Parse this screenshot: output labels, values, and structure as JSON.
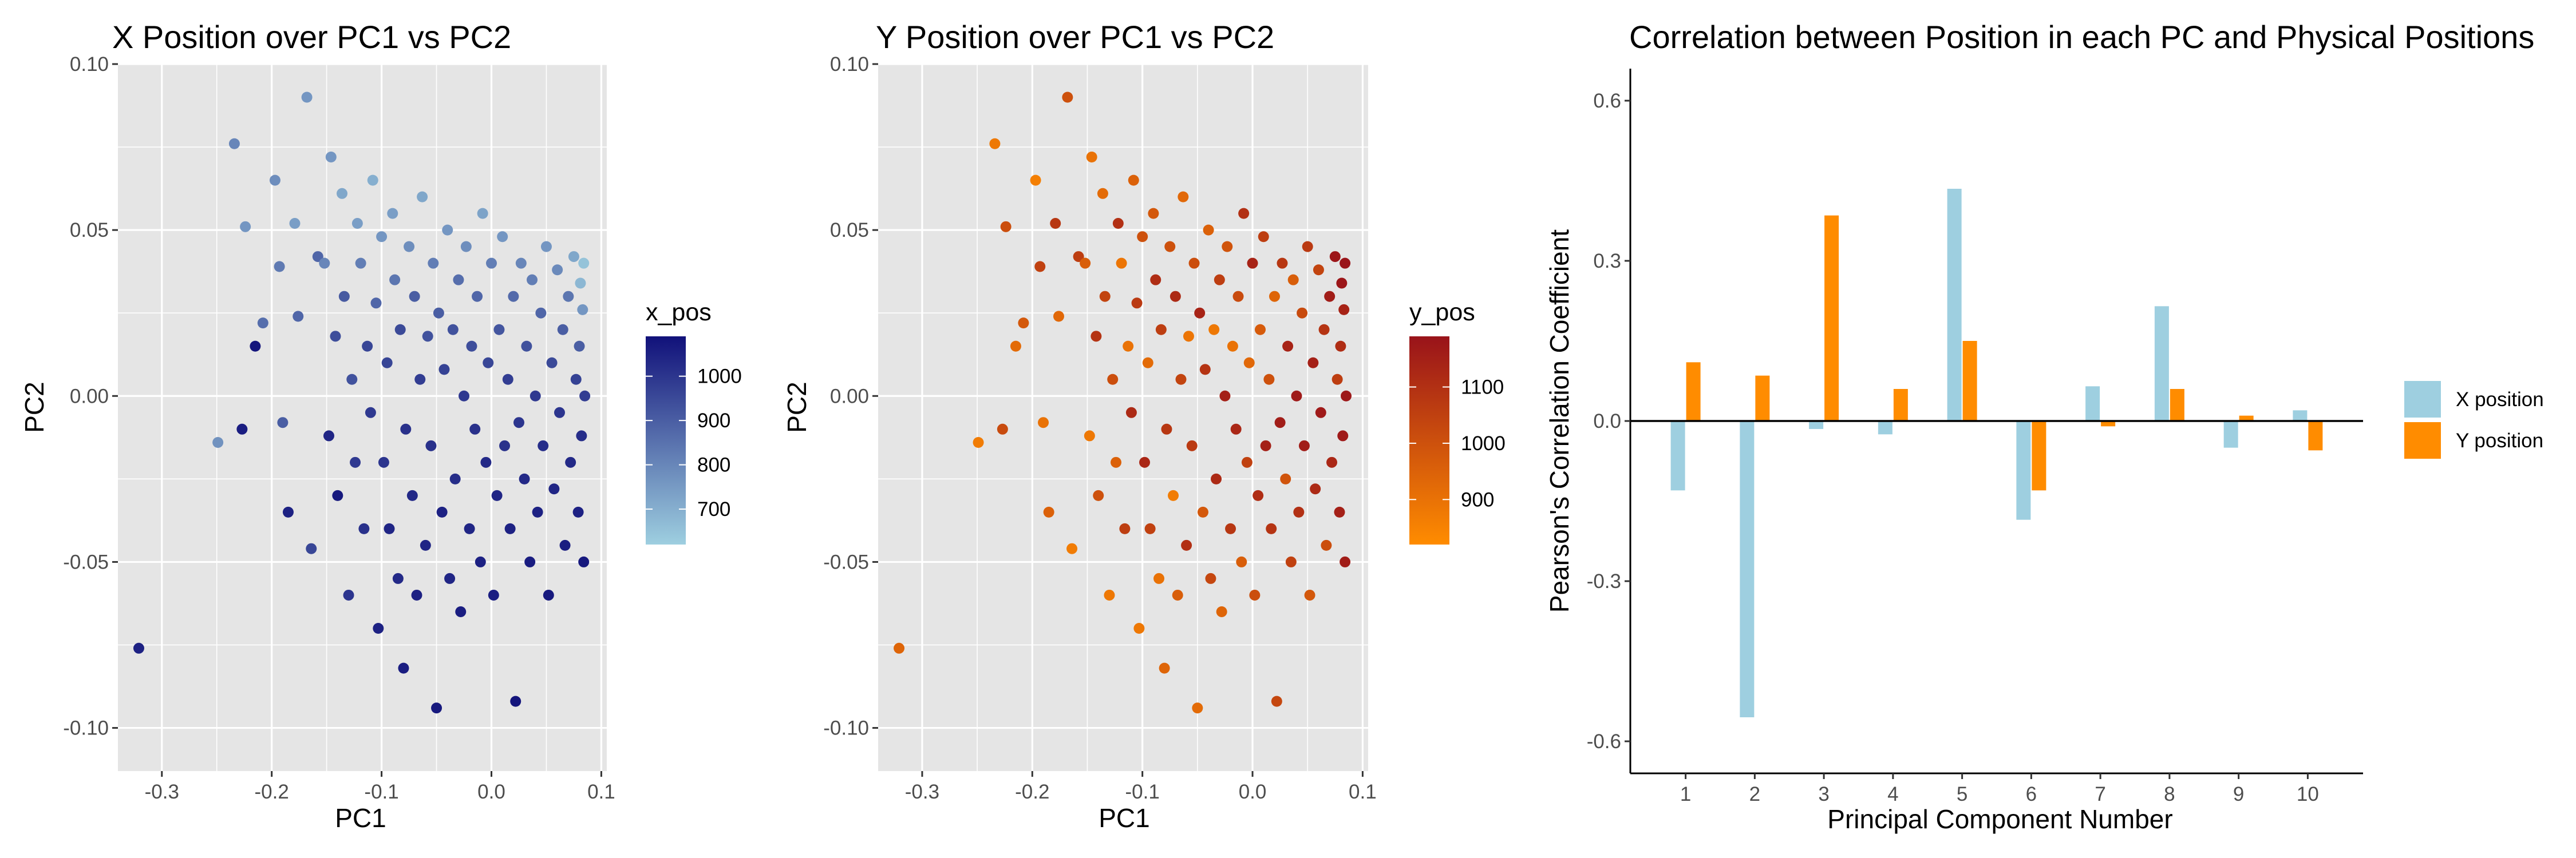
{
  "colors": {
    "panel_bg": "#e5e5e5",
    "grid": "#ffffff",
    "x_low": "#9ecfe0",
    "x_high": "#11117a",
    "y_low": "#ff8c00",
    "y_high": "#99131a",
    "bar_x": "#9ecfe0",
    "bar_y": "#ff8c00"
  },
  "chart_data": [
    {
      "type": "scatter",
      "title": "X Position over PC1 vs PC2",
      "xlabel": "PC1",
      "ylabel": "PC2",
      "xlim": [
        -0.34,
        0.105
      ],
      "ylim": [
        -0.113,
        0.1
      ],
      "xticks": [
        -0.3,
        -0.2,
        -0.1,
        0.0,
        0.1
      ],
      "xtick_labels": [
        "-0.3",
        "-0.2",
        "-0.1",
        "0.0",
        "0.1"
      ],
      "yticks": [
        -0.1,
        -0.05,
        0.0,
        0.05,
        0.1
      ],
      "ytick_labels": [
        "-0.10",
        "-0.05",
        "0.00",
        "0.05",
        "0.10"
      ],
      "color_variable": "x_pos",
      "color_range": [
        620,
        1090
      ],
      "legend_title": "x_pos",
      "legend_ticks": [
        700,
        800,
        900,
        1000
      ],
      "legend_tick_labels": [
        "700",
        "800",
        "900",
        "1000"
      ],
      "grid": true,
      "points": [
        [
          -0.321,
          -0.076,
          1050
        ],
        [
          -0.249,
          -0.014,
          770
        ],
        [
          -0.234,
          0.076,
          800
        ],
        [
          -0.227,
          -0.01,
          1060
        ],
        [
          -0.224,
          0.051,
          760
        ],
        [
          -0.215,
          0.015,
          1080
        ],
        [
          -0.208,
          0.022,
          860
        ],
        [
          -0.197,
          0.065,
          780
        ],
        [
          -0.193,
          0.039,
          830
        ],
        [
          -0.19,
          -0.008,
          900
        ],
        [
          -0.185,
          -0.035,
          1050
        ],
        [
          -0.179,
          0.052,
          740
        ],
        [
          -0.176,
          0.024,
          880
        ],
        [
          -0.168,
          0.09,
          760
        ],
        [
          -0.164,
          -0.046,
          960
        ],
        [
          -0.158,
          0.042,
          880
        ],
        [
          -0.152,
          0.04,
          800
        ],
        [
          -0.148,
          -0.012,
          1040
        ],
        [
          -0.146,
          0.072,
          760
        ],
        [
          -0.142,
          0.018,
          940
        ],
        [
          -0.14,
          -0.03,
          1070
        ],
        [
          -0.136,
          0.061,
          720
        ],
        [
          -0.134,
          0.03,
          910
        ],
        [
          -0.13,
          -0.06,
          1000
        ],
        [
          -0.127,
          0.005,
          930
        ],
        [
          -0.124,
          -0.02,
          990
        ],
        [
          -0.122,
          0.052,
          740
        ],
        [
          -0.119,
          0.04,
          820
        ],
        [
          -0.116,
          -0.04,
          1010
        ],
        [
          -0.113,
          0.015,
          960
        ],
        [
          -0.11,
          -0.005,
          990
        ],
        [
          -0.108,
          0.065,
          700
        ],
        [
          -0.105,
          0.028,
          880
        ],
        [
          -0.103,
          -0.07,
          1050
        ],
        [
          -0.1,
          0.048,
          760
        ],
        [
          -0.098,
          -0.02,
          1000
        ],
        [
          -0.095,
          0.01,
          960
        ],
        [
          -0.093,
          -0.04,
          1040
        ],
        [
          -0.09,
          0.055,
          740
        ],
        [
          -0.088,
          0.035,
          840
        ],
        [
          -0.085,
          -0.055,
          1030
        ],
        [
          -0.083,
          0.02,
          950
        ],
        [
          -0.08,
          -0.082,
          1060
        ],
        [
          -0.078,
          -0.01,
          1010
        ],
        [
          -0.075,
          0.045,
          780
        ],
        [
          -0.072,
          -0.03,
          1030
        ],
        [
          -0.07,
          0.03,
          900
        ],
        [
          -0.068,
          -0.06,
          1050
        ],
        [
          -0.065,
          0.005,
          980
        ],
        [
          -0.063,
          0.06,
          720
        ],
        [
          -0.06,
          -0.045,
          1040
        ],
        [
          -0.058,
          0.018,
          930
        ],
        [
          -0.055,
          -0.015,
          1010
        ],
        [
          -0.053,
          0.04,
          820
        ],
        [
          -0.05,
          -0.094,
          1070
        ],
        [
          -0.048,
          0.025,
          900
        ],
        [
          -0.045,
          -0.035,
          1050
        ],
        [
          -0.043,
          0.008,
          970
        ],
        [
          -0.04,
          0.05,
          760
        ],
        [
          -0.038,
          -0.055,
          1040
        ],
        [
          -0.035,
          0.02,
          930
        ],
        [
          -0.033,
          -0.025,
          1020
        ],
        [
          -0.03,
          0.035,
          860
        ],
        [
          -0.028,
          -0.065,
          1060
        ],
        [
          -0.025,
          0.0,
          990
        ],
        [
          -0.023,
          0.045,
          780
        ],
        [
          -0.02,
          -0.04,
          1040
        ],
        [
          -0.018,
          0.015,
          940
        ],
        [
          -0.015,
          -0.01,
          1010
        ],
        [
          -0.013,
          0.03,
          880
        ],
        [
          -0.01,
          -0.05,
          1050
        ],
        [
          -0.008,
          0.055,
          730
        ],
        [
          -0.005,
          -0.02,
          1030
        ],
        [
          -0.003,
          0.01,
          960
        ],
        [
          0.0,
          0.04,
          820
        ],
        [
          0.002,
          -0.06,
          1060
        ],
        [
          0.005,
          -0.03,
          1040
        ],
        [
          0.007,
          0.02,
          920
        ],
        [
          0.01,
          0.048,
          760
        ],
        [
          0.012,
          -0.015,
          1010
        ],
        [
          0.015,
          0.005,
          980
        ],
        [
          0.017,
          -0.04,
          1050
        ],
        [
          0.02,
          0.03,
          870
        ],
        [
          0.022,
          -0.092,
          1080
        ],
        [
          0.025,
          -0.008,
          1000
        ],
        [
          0.027,
          0.04,
          800
        ],
        [
          0.03,
          -0.025,
          1030
        ],
        [
          0.032,
          0.015,
          930
        ],
        [
          0.035,
          -0.05,
          1060
        ],
        [
          0.037,
          0.035,
          820
        ],
        [
          0.04,
          0.0,
          990
        ],
        [
          0.042,
          -0.035,
          1050
        ],
        [
          0.045,
          0.025,
          880
        ],
        [
          0.047,
          -0.015,
          1020
        ],
        [
          0.05,
          0.045,
          760
        ],
        [
          0.052,
          -0.06,
          1070
        ],
        [
          0.055,
          0.01,
          950
        ],
        [
          0.057,
          -0.028,
          1040
        ],
        [
          0.06,
          0.038,
          790
        ],
        [
          0.062,
          -0.005,
          1000
        ],
        [
          0.065,
          0.02,
          900
        ],
        [
          0.067,
          -0.045,
          1060
        ],
        [
          0.07,
          0.03,
          840
        ],
        [
          0.072,
          -0.02,
          1030
        ],
        [
          0.075,
          0.042,
          720
        ],
        [
          0.077,
          0.005,
          970
        ],
        [
          0.079,
          -0.035,
          1050
        ],
        [
          0.08,
          0.015,
          900
        ],
        [
          0.081,
          0.034,
          680
        ],
        [
          0.082,
          -0.012,
          1020
        ],
        [
          0.083,
          0.026,
          760
        ],
        [
          0.084,
          -0.05,
          1070
        ],
        [
          0.084,
          0.04,
          650
        ],
        [
          0.085,
          0.0,
          980
        ]
      ]
    },
    {
      "type": "scatter",
      "title": "Y Position over PC1 vs PC2",
      "xlabel": "PC1",
      "ylabel": "PC2",
      "xlim": [
        -0.34,
        0.105
      ],
      "ylim": [
        -0.113,
        0.1
      ],
      "xticks": [
        -0.3,
        -0.2,
        -0.1,
        0.0,
        0.1
      ],
      "xtick_labels": [
        "-0.3",
        "-0.2",
        "-0.1",
        "0.0",
        "0.1"
      ],
      "yticks": [
        -0.1,
        -0.05,
        0.0,
        0.05,
        0.1
      ],
      "ytick_labels": [
        "-0.10",
        "-0.05",
        "0.00",
        "0.05",
        "0.10"
      ],
      "color_variable": "y_pos",
      "color_range": [
        820,
        1190
      ],
      "legend_title": "y_pos",
      "legend_ticks": [
        900,
        1000,
        1100
      ],
      "legend_tick_labels": [
        "900",
        "1000",
        "1100"
      ],
      "grid": true,
      "points": [
        [
          -0.321,
          -0.076,
          940
        ],
        [
          -0.249,
          -0.014,
          870
        ],
        [
          -0.234,
          0.076,
          880
        ],
        [
          -0.227,
          -0.01,
          1020
        ],
        [
          -0.224,
          0.051,
          1010
        ],
        [
          -0.215,
          0.015,
          920
        ],
        [
          -0.208,
          0.022,
          980
        ],
        [
          -0.197,
          0.065,
          860
        ],
        [
          -0.193,
          0.039,
          1050
        ],
        [
          -0.19,
          -0.008,
          900
        ],
        [
          -0.185,
          -0.035,
          950
        ],
        [
          -0.179,
          0.052,
          1080
        ],
        [
          -0.176,
          0.024,
          930
        ],
        [
          -0.168,
          0.09,
          1000
        ],
        [
          -0.164,
          -0.046,
          870
        ],
        [
          -0.158,
          0.042,
          1060
        ],
        [
          -0.152,
          0.04,
          960
        ],
        [
          -0.148,
          -0.012,
          880
        ],
        [
          -0.146,
          0.072,
          900
        ],
        [
          -0.142,
          0.018,
          1090
        ],
        [
          -0.14,
          -0.03,
          1000
        ],
        [
          -0.136,
          0.061,
          920
        ],
        [
          -0.134,
          0.03,
          1040
        ],
        [
          -0.13,
          -0.06,
          880
        ],
        [
          -0.127,
          0.005,
          1010
        ],
        [
          -0.124,
          -0.02,
          950
        ],
        [
          -0.122,
          0.052,
          1100
        ],
        [
          -0.119,
          0.04,
          890
        ],
        [
          -0.116,
          -0.04,
          1060
        ],
        [
          -0.113,
          0.015,
          900
        ],
        [
          -0.11,
          -0.005,
          1120
        ],
        [
          -0.108,
          0.065,
          950
        ],
        [
          -0.105,
          0.028,
          1070
        ],
        [
          -0.103,
          -0.07,
          880
        ],
        [
          -0.1,
          0.048,
          1000
        ],
        [
          -0.098,
          -0.02,
          1130
        ],
        [
          -0.095,
          0.01,
          920
        ],
        [
          -0.093,
          -0.04,
          1050
        ],
        [
          -0.09,
          0.055,
          980
        ],
        [
          -0.088,
          0.035,
          1110
        ],
        [
          -0.085,
          -0.055,
          900
        ],
        [
          -0.083,
          0.02,
          1060
        ],
        [
          -0.08,
          -0.082,
          940
        ],
        [
          -0.078,
          -0.01,
          1080
        ],
        [
          -0.075,
          0.045,
          1000
        ],
        [
          -0.072,
          -0.03,
          870
        ],
        [
          -0.07,
          0.03,
          1120
        ],
        [
          -0.068,
          -0.06,
          960
        ],
        [
          -0.065,
          0.005,
          1040
        ],
        [
          -0.063,
          0.06,
          930
        ],
        [
          -0.06,
          -0.045,
          1100
        ],
        [
          -0.058,
          0.018,
          890
        ],
        [
          -0.055,
          -0.015,
          1070
        ],
        [
          -0.053,
          0.04,
          1010
        ],
        [
          -0.05,
          -0.094,
          920
        ],
        [
          -0.048,
          0.025,
          1140
        ],
        [
          -0.045,
          -0.035,
          980
        ],
        [
          -0.043,
          0.008,
          1090
        ],
        [
          -0.04,
          0.05,
          950
        ],
        [
          -0.038,
          -0.055,
          1030
        ],
        [
          -0.035,
          0.02,
          880
        ],
        [
          -0.033,
          -0.025,
          1120
        ],
        [
          -0.03,
          0.035,
          1060
        ],
        [
          -0.028,
          -0.065,
          940
        ],
        [
          -0.025,
          0.0,
          1150
        ],
        [
          -0.023,
          0.045,
          990
        ],
        [
          -0.02,
          -0.04,
          1080
        ],
        [
          -0.018,
          0.015,
          900
        ],
        [
          -0.015,
          -0.01,
          1130
        ],
        [
          -0.013,
          0.03,
          1020
        ],
        [
          -0.01,
          -0.05,
          960
        ],
        [
          -0.008,
          0.055,
          1100
        ],
        [
          -0.005,
          -0.02,
          1050
        ],
        [
          -0.003,
          0.01,
          930
        ],
        [
          0.0,
          0.04,
          1140
        ],
        [
          0.002,
          -0.06,
          1010
        ],
        [
          0.005,
          -0.03,
          1110
        ],
        [
          0.007,
          0.02,
          970
        ],
        [
          0.01,
          0.048,
          1060
        ],
        [
          0.012,
          -0.015,
          1150
        ],
        [
          0.015,
          0.005,
          1000
        ],
        [
          0.017,
          -0.04,
          1090
        ],
        [
          0.02,
          0.03,
          940
        ],
        [
          0.022,
          -0.092,
          1030
        ],
        [
          0.025,
          -0.008,
          1160
        ],
        [
          0.027,
          0.04,
          1080
        ],
        [
          0.03,
          -0.025,
          990
        ],
        [
          0.032,
          0.015,
          1140
        ],
        [
          0.035,
          -0.05,
          1050
        ],
        [
          0.037,
          0.035,
          960
        ],
        [
          0.04,
          0.0,
          1170
        ],
        [
          0.042,
          -0.035,
          1100
        ],
        [
          0.045,
          0.025,
          1020
        ],
        [
          0.047,
          -0.015,
          1160
        ],
        [
          0.05,
          0.045,
          1070
        ],
        [
          0.052,
          -0.06,
          980
        ],
        [
          0.055,
          0.01,
          1150
        ],
        [
          0.057,
          -0.028,
          1120
        ],
        [
          0.06,
          0.038,
          1040
        ],
        [
          0.062,
          -0.005,
          1170
        ],
        [
          0.065,
          0.02,
          1090
        ],
        [
          0.067,
          -0.045,
          1010
        ],
        [
          0.07,
          0.03,
          1160
        ],
        [
          0.072,
          -0.02,
          1130
        ],
        [
          0.075,
          0.042,
          1180
        ],
        [
          0.077,
          0.005,
          1060
        ],
        [
          0.079,
          -0.035,
          1150
        ],
        [
          0.08,
          0.015,
          1110
        ],
        [
          0.081,
          0.034,
          1180
        ],
        [
          0.082,
          -0.012,
          1170
        ],
        [
          0.083,
          0.026,
          1140
        ],
        [
          0.084,
          -0.05,
          1160
        ],
        [
          0.084,
          0.04,
          1185
        ],
        [
          0.085,
          0.0,
          1175
        ]
      ]
    },
    {
      "type": "bar",
      "title": "Correlation between Position in each PC and Physical Positions",
      "xlabel": "Principal Component Number",
      "ylabel": "Pearson's Correlation Coefficient",
      "categories": [
        "1",
        "2",
        "3",
        "4",
        "5",
        "6",
        "7",
        "8",
        "9",
        "10"
      ],
      "series": [
        {
          "name": "X position",
          "values": [
            -0.13,
            -0.555,
            -0.015,
            -0.025,
            0.435,
            -0.185,
            0.065,
            0.215,
            -0.05,
            0.02
          ]
        },
        {
          "name": "Y position",
          "values": [
            0.11,
            0.085,
            0.385,
            0.06,
            0.15,
            -0.13,
            -0.01,
            0.06,
            0.01,
            -0.055
          ]
        }
      ],
      "ylim": [
        -0.66,
        0.66
      ],
      "yticks": [
        -0.6,
        -0.3,
        0.0,
        0.3,
        0.6
      ],
      "ytick_labels": [
        "-0.6",
        "-0.3",
        "0.0",
        "0.3",
        "0.6"
      ],
      "grid": false,
      "legend_position": "right"
    }
  ]
}
